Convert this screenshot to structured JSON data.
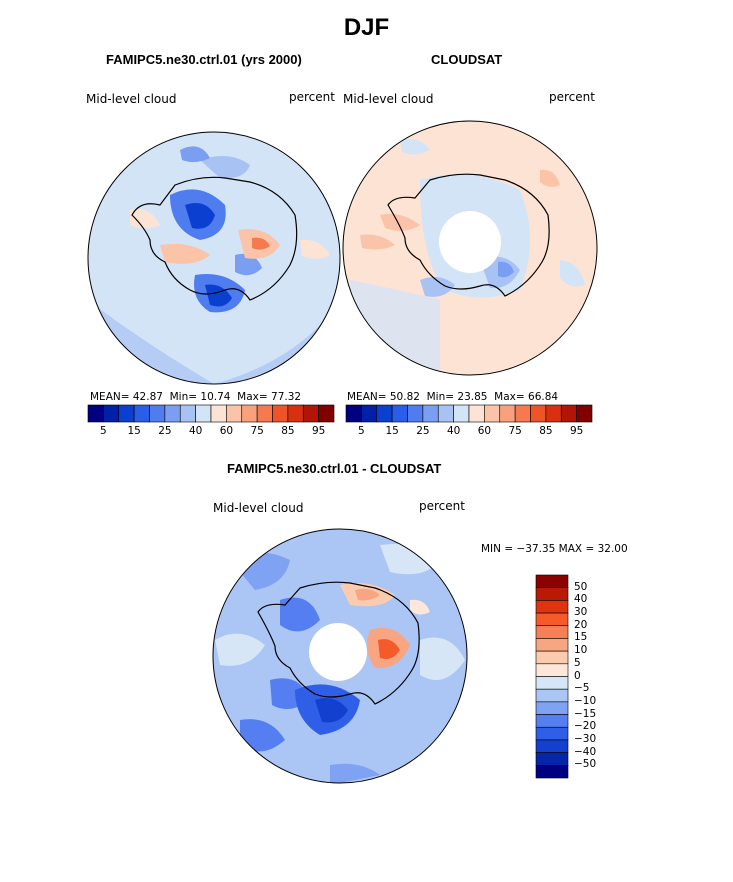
{
  "title": "DJF",
  "panels": {
    "model": {
      "title": "FAMIPC5.ne30.ctrl.01 (yrs 2000)",
      "variable": "Mid-level cloud",
      "units": "percent",
      "stats": {
        "mean_label": "MEAN=",
        "mean": "42.87",
        "min_label": "Min=",
        "min": "10.74",
        "max_label": "Max=",
        "max": "77.32"
      }
    },
    "obs": {
      "title": "CLOUDSAT",
      "variable": "Mid-level cloud",
      "units": "percent",
      "stats": {
        "mean_label": "MEAN=",
        "mean": "50.82",
        "min_label": "Min=",
        "min": "23.85",
        "max_label": "Max=",
        "max": "66.84"
      }
    },
    "diff": {
      "title": "FAMIPC5.ne30.ctrl.01 - CLOUDSAT",
      "variable": "Mid-level cloud",
      "units": "percent",
      "minmax_text": "MIN = −37.35 MAX =   32.00"
    }
  },
  "colorbar_abs": {
    "colors": [
      "#000080",
      "#0020a8",
      "#0a3fd0",
      "#2a5ee8",
      "#4f7df0",
      "#7a9ef2",
      "#a8c2f4",
      "#d4e4f7",
      "#fde3d3",
      "#fbc4a8",
      "#f8a17c",
      "#f57a50",
      "#ef5428",
      "#d83010",
      "#b01508",
      "#800000"
    ],
    "tick_labels": [
      "5",
      "15",
      "25",
      "40",
      "60",
      "75",
      "85",
      "95"
    ]
  },
  "colorbar_diff": {
    "colors": [
      "#8b0000",
      "#b81a05",
      "#e0330f",
      "#f55a2a",
      "#f77f55",
      "#f8a682",
      "#fbcbb0",
      "#fde7da",
      "#d6e6f7",
      "#abc5f4",
      "#7fa2f2",
      "#557ff0",
      "#2f5fe6",
      "#1440cf",
      "#0525ab",
      "#000080"
    ],
    "tick_labels": [
      "50",
      "40",
      "30",
      "20",
      "15",
      "10",
      "5",
      "0",
      "−5",
      "−10",
      "−15",
      "−20",
      "−30",
      "−40",
      "−50"
    ]
  },
  "chart_data": [
    {
      "type": "heatmap",
      "title": "FAMIPC5.ne30.ctrl.01 (yrs 2000)",
      "projection": "south polar stereographic",
      "variable": "Mid-level cloud",
      "units": "percent",
      "mean": 42.87,
      "min": 10.74,
      "max": 77.32,
      "levels": [
        5,
        10,
        15,
        20,
        25,
        30,
        40,
        50,
        60,
        70,
        75,
        80,
        85,
        90,
        95
      ]
    },
    {
      "type": "heatmap",
      "title": "CLOUDSAT",
      "projection": "south polar stereographic",
      "variable": "Mid-level cloud",
      "units": "percent",
      "mean": 50.82,
      "min": 23.85,
      "max": 66.84,
      "levels": [
        5,
        10,
        15,
        20,
        25,
        30,
        40,
        50,
        60,
        70,
        75,
        80,
        85,
        90,
        95
      ]
    },
    {
      "type": "heatmap",
      "title": "FAMIPC5.ne30.ctrl.01 - CLOUDSAT",
      "projection": "south polar stereographic",
      "variable": "Mid-level cloud",
      "units": "percent",
      "min": -37.35,
      "max": 32.0,
      "levels": [
        -50,
        -40,
        -30,
        -20,
        -15,
        -10,
        -5,
        0,
        5,
        10,
        15,
        20,
        30,
        40,
        50
      ]
    }
  ]
}
